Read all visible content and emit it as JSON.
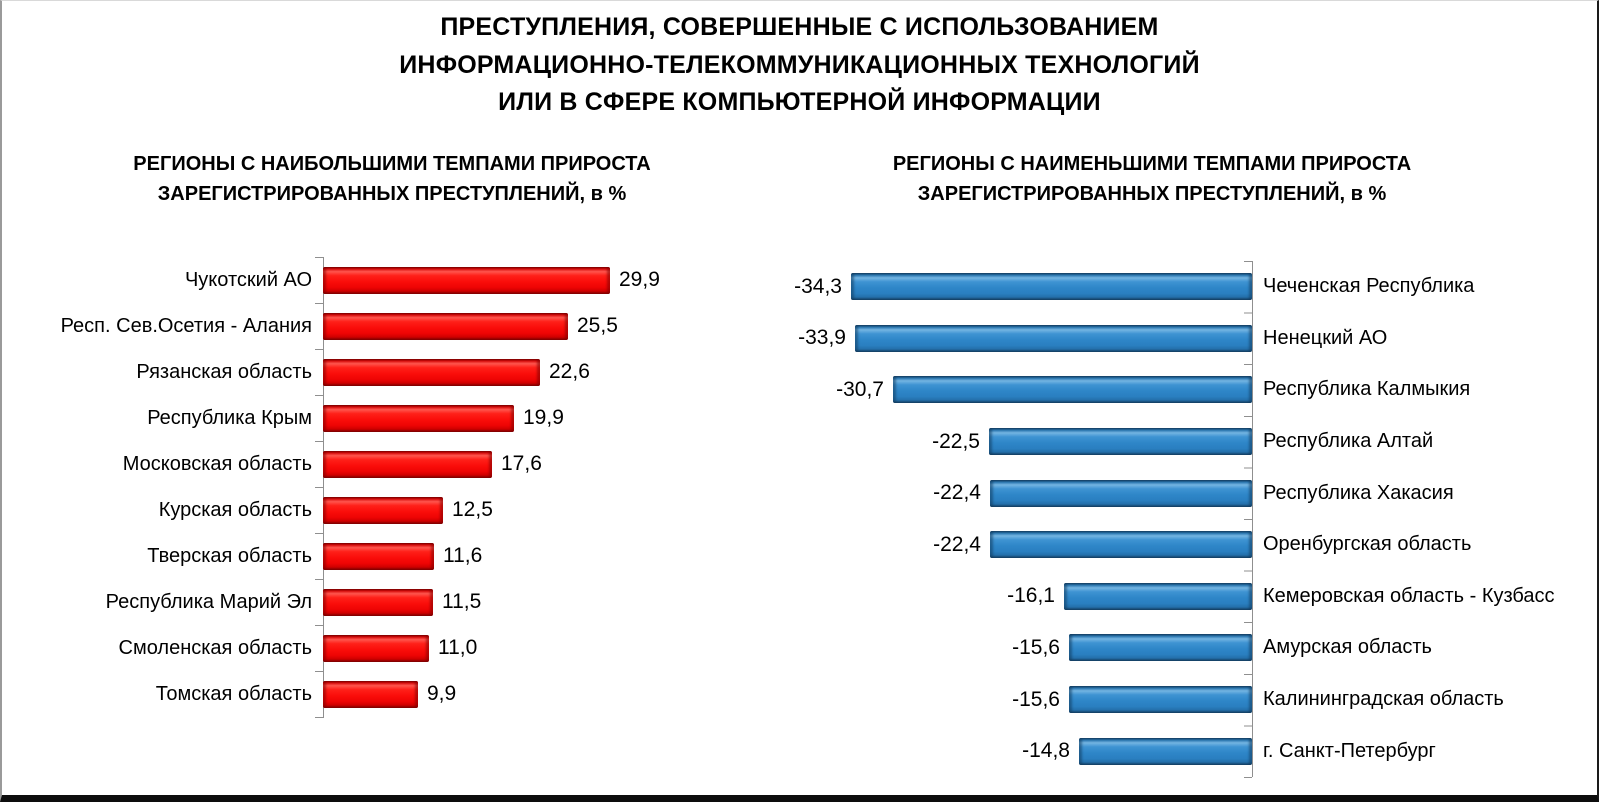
{
  "page": {
    "title_lines": [
      "ПРЕСТУПЛЕНИЯ, СОВЕРШЕННЫЕ С ИСПОЛЬЗОВАНИЕМ",
      "ИНФОРМАЦИОННО-ТЕЛЕКОММУНИКАЦИОННЫХ ТЕХНОЛОГИЙ",
      "ИЛИ В СФЕРЕ  КОМПЬЮТЕРНОЙ ИНФОРМАЦИИ"
    ]
  },
  "chart_data": [
    {
      "type": "bar",
      "orientation": "horizontal",
      "side": "left",
      "bar_color": "#ee0707",
      "title_lines": [
        "РЕГИОНЫ С НАИБОЛЬШИМИ ТЕМПАМИ ПРИРОСТА",
        "ЗАРЕГИСТРИРОВАННЫХ ПРЕСТУПЛЕНИЙ, в %"
      ],
      "categories": [
        "Чукотский АО",
        "Респ. Сев.Осетия - Алания",
        "Рязанская область",
        "Республика Крым",
        "Московская область",
        "Курская область",
        "Тверская область",
        "Республика Марий Эл",
        "Смоленская область",
        "Томская область"
      ],
      "values": [
        29.9,
        25.5,
        22.6,
        19.9,
        17.6,
        12.5,
        11.6,
        11.5,
        11.0,
        9.9
      ],
      "value_labels": [
        "29,9",
        "25,5",
        "22,6",
        "19,9",
        "17,6",
        "12,5",
        "11,6",
        "11,5",
        "11,0",
        "9,9"
      ],
      "xlim": [
        0,
        30
      ],
      "grid": false,
      "legend": "none",
      "value_label_position": "right-of-bar",
      "category_label_position": "left-of-axis"
    },
    {
      "type": "bar",
      "orientation": "horizontal",
      "side": "right",
      "bar_color": "#2e86c8",
      "title_lines": [
        "РЕГИОНЫ С НАИМЕНЬШИМИ ТЕМПАМИ ПРИРОСТА",
        "ЗАРЕГИСТРИРОВАННЫХ ПРЕСТУПЛЕНИЙ, в %"
      ],
      "categories": [
        "Чеченская Республика",
        "Ненецкий АО",
        "Республика Калмыкия",
        "Республика Алтай",
        "Республика Хакасия",
        "Оренбургская область",
        "Кемеровская область - Кузбасс",
        "Амурская область",
        "Калининградская область",
        "г. Санкт-Петербург"
      ],
      "values": [
        -34.3,
        -33.9,
        -30.7,
        -22.5,
        -22.4,
        -22.4,
        -16.1,
        -15.6,
        -15.6,
        -14.8
      ],
      "value_labels": [
        "-34,3",
        "-33,9",
        "-30,7",
        "-22,5",
        "-22,4",
        "-22,4",
        "-16,1",
        "-15,6",
        "-15,6",
        "-14,8"
      ],
      "xlim": [
        -35,
        0
      ],
      "grid": false,
      "legend": "none",
      "value_label_position": "left-of-bar",
      "category_label_position": "right-of-axis"
    }
  ]
}
